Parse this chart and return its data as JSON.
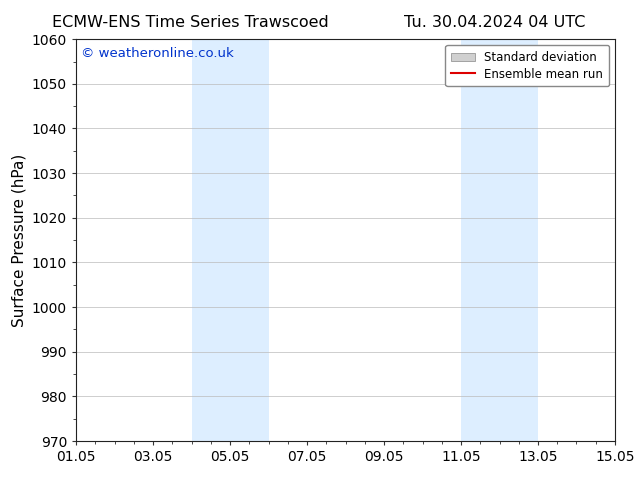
{
  "title_left": "ECMW-ENS Time Series Trawscoed",
  "title_right": "Tu. 30.04.2024 04 UTC",
  "ylabel": "Surface Pressure (hPa)",
  "ylim": [
    970,
    1060
  ],
  "yticks": [
    970,
    980,
    990,
    1000,
    1010,
    1020,
    1030,
    1040,
    1050,
    1060
  ],
  "xlim": [
    1,
    15
  ],
  "xtick_positions": [
    1,
    3,
    5,
    7,
    9,
    11,
    13,
    15
  ],
  "xtick_labels": [
    "01.05",
    "03.05",
    "05.05",
    "07.05",
    "09.05",
    "11.05",
    "13.05",
    "15.05"
  ],
  "shaded_bands": [
    {
      "x_start": 4.0,
      "x_end": 6.0
    },
    {
      "x_start": 11.0,
      "x_end": 13.0
    }
  ],
  "shade_color": "#ddeeff",
  "background_color": "#ffffff",
  "watermark_text": "© weatheronline.co.uk",
  "watermark_color": "#0033cc",
  "legend_items": [
    {
      "label": "Standard deviation",
      "color": "#d0d0d0",
      "type": "patch"
    },
    {
      "label": "Ensemble mean run",
      "color": "#dd0000",
      "type": "line"
    }
  ],
  "title_fontsize": 11.5,
  "tick_fontsize": 10,
  "ylabel_fontsize": 11
}
